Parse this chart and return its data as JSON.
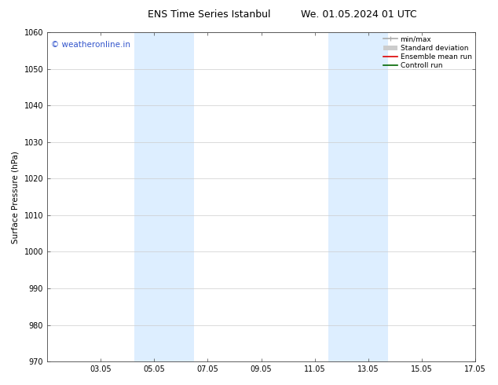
{
  "title_left": "ENS Time Series Istanbul",
  "title_right": "We. 01.05.2024 01 UTC",
  "ylabel": "Surface Pressure (hPa)",
  "ylim": [
    970,
    1060
  ],
  "yticks": [
    970,
    980,
    990,
    1000,
    1010,
    1020,
    1030,
    1040,
    1050,
    1060
  ],
  "xlim": [
    0,
    16
  ],
  "xtick_labels": [
    "03.05",
    "05.05",
    "07.05",
    "09.05",
    "11.05",
    "13.05",
    "15.05",
    "17.05"
  ],
  "xtick_positions": [
    2,
    4,
    6,
    8,
    10,
    12,
    14,
    16
  ],
  "shaded_bands": [
    {
      "xmin": 3.25,
      "xmax": 5.5,
      "color": "#ddeeff"
    },
    {
      "xmin": 10.5,
      "xmax": 12.75,
      "color": "#ddeeff"
    }
  ],
  "watermark_text": "© weatheronline.in",
  "watermark_color": "#3355cc",
  "watermark_fontsize": 7.5,
  "legend_entries": [
    {
      "label": "min/max",
      "color": "#aaaaaa",
      "lw": 1.2
    },
    {
      "label": "Standard deviation",
      "color": "#cccccc",
      "lw": 5
    },
    {
      "label": "Ensemble mean run",
      "color": "#dd0000",
      "lw": 1.2
    },
    {
      "label": "Controll run",
      "color": "#006600",
      "lw": 1.2
    }
  ],
  "bg_color": "#ffffff",
  "grid_color": "#cccccc",
  "title_fontsize": 9,
  "axis_fontsize": 7,
  "legend_fontsize": 6.5,
  "ylabel_fontsize": 7.5
}
